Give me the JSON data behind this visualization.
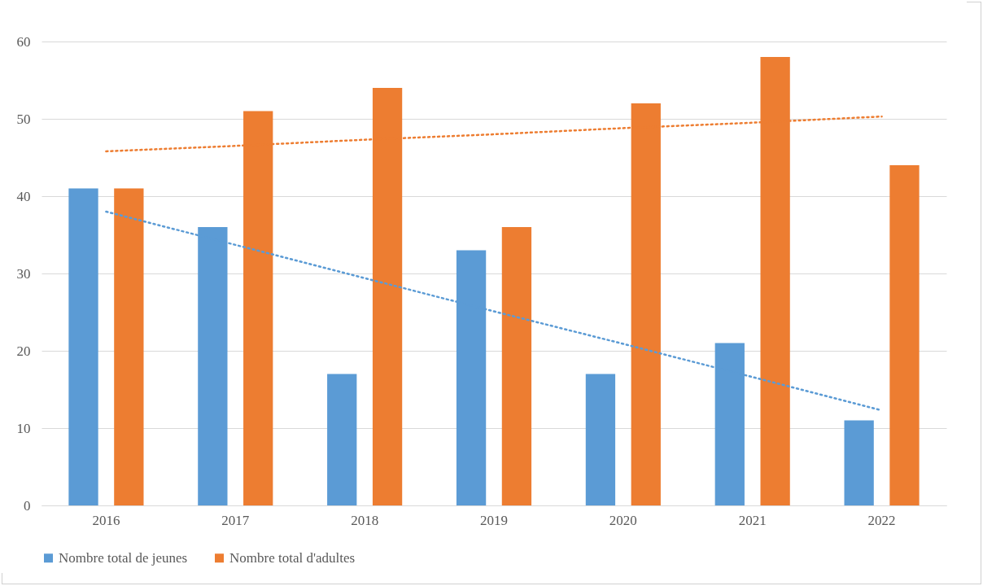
{
  "chart_data": {
    "type": "bar",
    "categories": [
      "2016",
      "2017",
      "2018",
      "2019",
      "2020",
      "2021",
      "2022"
    ],
    "series": [
      {
        "name": "Nombre total de jeunes",
        "color": "#5b9bd5",
        "values": [
          41,
          36,
          17,
          33,
          17,
          21,
          11
        ]
      },
      {
        "name": "Nombre total d'adultes",
        "color": "#ed7d31",
        "values": [
          41,
          51,
          54,
          36,
          52,
          58,
          44
        ]
      },
      {
        "type": "line",
        "color": "#5b9bd5",
        "line_style": "dotted",
        "values": [
          38.0,
          33.7,
          29.4,
          25.1,
          20.9,
          16.6,
          12.3
        ]
      },
      {
        "type": "line",
        "color": "#ed7d31",
        "line_style": "dotted",
        "values": [
          45.8,
          46.5,
          47.3,
          48.0,
          48.8,
          49.5,
          50.3
        ]
      }
    ],
    "ylim": [
      0,
      60
    ],
    "yticks": [
      0,
      10,
      20,
      30,
      40,
      50,
      60
    ],
    "grid": "y",
    "legend": "bottom"
  }
}
